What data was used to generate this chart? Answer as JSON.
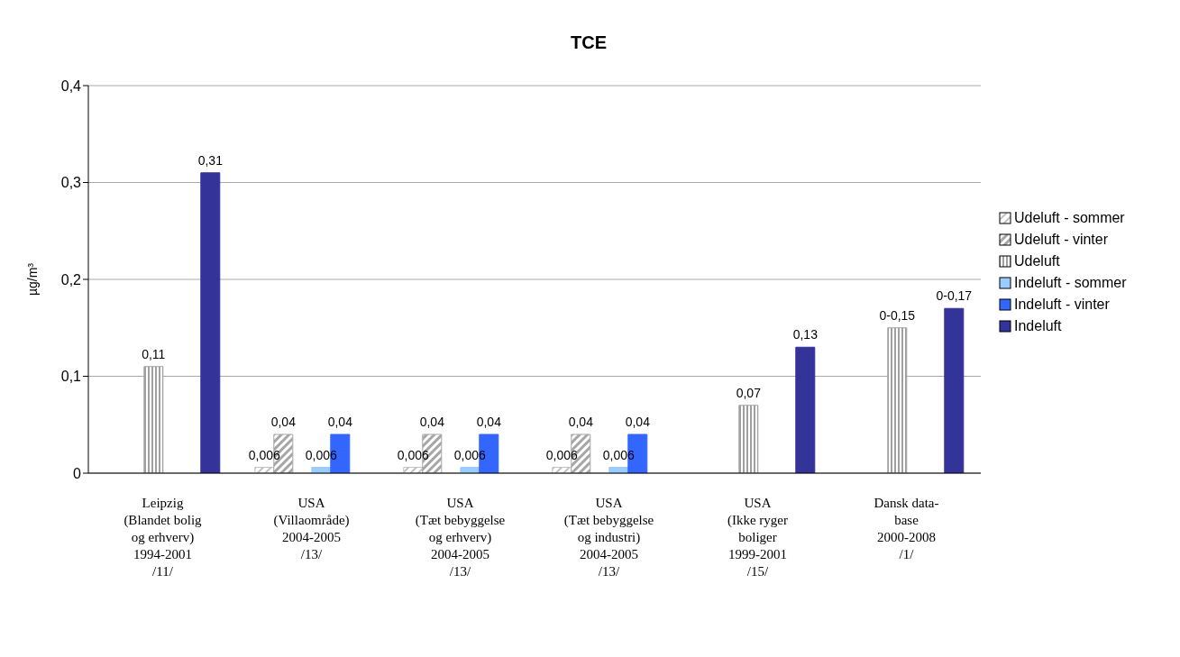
{
  "chart_data": {
    "type": "bar",
    "title": "TCE",
    "ylabel": "µg/m³",
    "categories": [
      "Leipzig\n(Blandet bolig\nog erhverv)\n1994-2001\n/11/",
      "USA\n(Villaområde)\n2004-2005\n/13/",
      "USA\n(Tæt bebyggelse\nog erhverv)\n2004-2005\n/13/",
      "USA\n(Tæt bebyggelse\nog industri)\n2004-2005\n/13/",
      "USA\n(Ikke ryger\nboliger\n1999-2001\n/15/",
      "Dansk data-\nbase\n2000-2008\n/1/"
    ],
    "series": [
      {
        "name": "Udeluft - sommer",
        "color": "#c0c0c0",
        "values": [
          null,
          0.006,
          0.006,
          0.006,
          null,
          null
        ],
        "value_labels": [
          null,
          "0,006",
          "0,006",
          "0,006",
          null,
          null
        ]
      },
      {
        "name": "Udeluft - vinter",
        "color": "#a6a6a6",
        "values": [
          null,
          0.04,
          0.04,
          0.04,
          null,
          null
        ],
        "value_labels": [
          null,
          "0,04",
          "0,04",
          "0,04",
          null,
          null
        ]
      },
      {
        "name": "Udeluft",
        "color": "#a0a0a0",
        "values": [
          0.11,
          null,
          null,
          null,
          0.07,
          0.15
        ],
        "value_labels": [
          "0,11",
          null,
          null,
          null,
          "0,07",
          "0-0,15"
        ]
      },
      {
        "name": "Indeluft - sommer",
        "color": "#99ccff",
        "values": [
          null,
          0.006,
          0.006,
          0.006,
          null,
          null
        ],
        "value_labels": [
          null,
          "0,006",
          "0,006",
          "0,006",
          null,
          null
        ]
      },
      {
        "name": "Indeluft - vinter",
        "color": "#3366ff",
        "values": [
          null,
          0.04,
          0.04,
          0.04,
          null,
          null
        ],
        "value_labels": [
          null,
          "0,04",
          "0,04",
          "0,04",
          null,
          null
        ]
      },
      {
        "name": "Indeluft",
        "color": "#333399",
        "values": [
          0.31,
          null,
          null,
          null,
          0.13,
          0.17
        ],
        "value_labels": [
          "0,31",
          null,
          null,
          null,
          "0,13",
          "0-0,17"
        ]
      }
    ],
    "ylim": [
      0,
      0.4
    ],
    "yticks": [
      0,
      {
        "value": 0.1,
        "label": "0,1"
      },
      {
        "value": 0.2,
        "label": "0,2"
      },
      {
        "value": 0.3,
        "label": "0,3"
      },
      {
        "value": 0.4,
        "label": "0,4"
      }
    ],
    "grid": "y",
    "legend": "right"
  }
}
